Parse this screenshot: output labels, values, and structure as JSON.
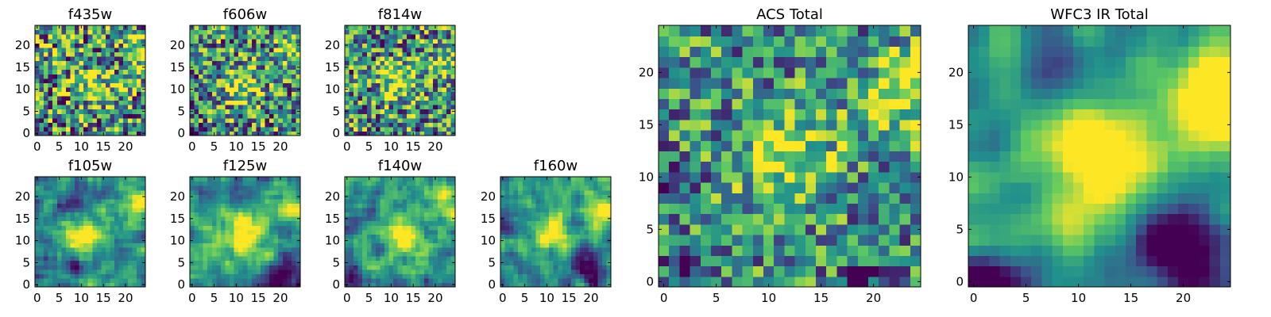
{
  "chart_data": {
    "type": "heatmap",
    "colormap": "viridis",
    "colors": [
      "#440154",
      "#3b528b",
      "#21918c",
      "#5ec962",
      "#fde725"
    ],
    "grid": false,
    "image_size": [
      25,
      25
    ],
    "panels": [
      {
        "id": "f435w",
        "title": "f435w",
        "xlim": [
          0,
          24
        ],
        "ylim": [
          0,
          24
        ],
        "xticks": [
          0,
          5,
          10,
          15,
          20
        ],
        "yticks": [
          0,
          5,
          10,
          15,
          20
        ],
        "seed": 11,
        "noise": 0.55,
        "smooth": 0,
        "blobs": [
          [
            13,
            11,
            3.5,
            0.35
          ],
          [
            23,
            19,
            2.5,
            0.4
          ]
        ],
        "dark": []
      },
      {
        "id": "f606w",
        "title": "f606w",
        "xlim": [
          0,
          24
        ],
        "ylim": [
          0,
          24
        ],
        "xticks": [
          0,
          5,
          10,
          15,
          20
        ],
        "yticks": [
          0,
          5,
          10,
          15,
          20
        ],
        "seed": 23,
        "noise": 0.5,
        "smooth": 0,
        "blobs": [
          [
            11,
            11,
            3,
            0.45
          ],
          [
            23,
            18,
            2.5,
            0.4
          ]
        ],
        "dark": [
          [
            0,
            0,
            1.5,
            0.6
          ]
        ]
      },
      {
        "id": "f814w",
        "title": "f814w",
        "xlim": [
          0,
          24
        ],
        "ylim": [
          0,
          24
        ],
        "xticks": [
          0,
          5,
          10,
          15,
          20
        ],
        "yticks": [
          0,
          5,
          10,
          15,
          20
        ],
        "seed": 37,
        "noise": 0.5,
        "smooth": 0,
        "blobs": [
          [
            12,
            12,
            3,
            0.45
          ],
          [
            23,
            17,
            2.5,
            0.4
          ]
        ],
        "dark": []
      },
      {
        "id": "f105w",
        "title": "f105w",
        "xlim": [
          0,
          24
        ],
        "ylim": [
          0,
          24
        ],
        "xticks": [
          0,
          5,
          10,
          15,
          20
        ],
        "yticks": [
          0,
          5,
          10,
          15,
          20
        ],
        "seed": 41,
        "noise": 0.4,
        "smooth": 1,
        "blobs": [
          [
            11,
            11,
            3.5,
            0.6
          ],
          [
            23,
            18,
            2.5,
            0.5
          ]
        ],
        "dark": [
          [
            8,
            19,
            2,
            0.4
          ],
          [
            9,
            5,
            1.5,
            0.4
          ]
        ]
      },
      {
        "id": "f125w",
        "title": "f125w",
        "xlim": [
          0,
          24
        ],
        "ylim": [
          0,
          24
        ],
        "xticks": [
          0,
          5,
          10,
          15,
          20
        ],
        "yticks": [
          0,
          5,
          10,
          15,
          20
        ],
        "seed": 53,
        "noise": 0.4,
        "smooth": 1,
        "blobs": [
          [
            12,
            11,
            3.5,
            0.55
          ],
          [
            23,
            18,
            2.5,
            0.5
          ]
        ],
        "dark": [
          [
            20,
            2,
            3,
            0.5
          ],
          [
            5,
            21,
            2,
            0.3
          ]
        ]
      },
      {
        "id": "f140w",
        "title": "f140w",
        "xlim": [
          0,
          24
        ],
        "ylim": [
          0,
          24
        ],
        "xticks": [
          0,
          5,
          10,
          15,
          20
        ],
        "yticks": [
          0,
          5,
          10,
          15,
          20
        ],
        "seed": 67,
        "noise": 0.4,
        "smooth": 1,
        "blobs": [
          [
            12,
            11,
            3.5,
            0.5
          ],
          [
            23,
            18,
            2.5,
            0.5
          ]
        ],
        "dark": [
          [
            7,
            8,
            1.5,
            0.5
          ],
          [
            1,
            2,
            2,
            0.4
          ]
        ]
      },
      {
        "id": "f160w",
        "title": "f160w",
        "xlim": [
          0,
          24
        ],
        "ylim": [
          0,
          24
        ],
        "xticks": [
          0,
          5,
          10,
          15,
          20
        ],
        "yticks": [
          0,
          5,
          10,
          15,
          20
        ],
        "seed": 79,
        "noise": 0.35,
        "smooth": 1,
        "blobs": [
          [
            11,
            12,
            3,
            0.55
          ],
          [
            23,
            17,
            2.5,
            0.55
          ]
        ],
        "dark": [
          [
            20,
            4,
            3,
            0.55
          ],
          [
            2,
            15,
            2,
            0.3
          ]
        ]
      },
      {
        "id": "acs-total",
        "title": "ACS Total",
        "xlim": [
          0,
          24
        ],
        "ylim": [
          0,
          24
        ],
        "xticks": [
          0,
          5,
          10,
          15,
          20
        ],
        "yticks": [
          0,
          5,
          10,
          15,
          20
        ],
        "seed": 83,
        "noise": 0.4,
        "smooth": 0,
        "blobs": [
          [
            12,
            12,
            3,
            0.5
          ],
          [
            24,
            18,
            3,
            0.5
          ]
        ],
        "dark": [
          [
            1,
            10,
            1.2,
            0.5
          ],
          [
            2,
            1,
            1.5,
            0.4
          ],
          [
            19,
            0,
            1,
            0.5
          ]
        ]
      },
      {
        "id": "wfc3-ir-total",
        "title": "WFC3 IR Total",
        "xlim": [
          0,
          24
        ],
        "ylim": [
          0,
          24
        ],
        "xticks": [
          0,
          5,
          10,
          15,
          20
        ],
        "yticks": [
          0,
          5,
          10,
          15,
          20
        ],
        "seed": 97,
        "noise": 0.22,
        "smooth": 2,
        "blobs": [
          [
            12,
            12,
            3.5,
            0.6
          ],
          [
            23,
            18,
            3,
            0.6
          ]
        ],
        "dark": [
          [
            20,
            3,
            3.5,
            0.65
          ],
          [
            0,
            0,
            2,
            0.55
          ],
          [
            8,
            20,
            2,
            0.3
          ]
        ]
      }
    ]
  }
}
